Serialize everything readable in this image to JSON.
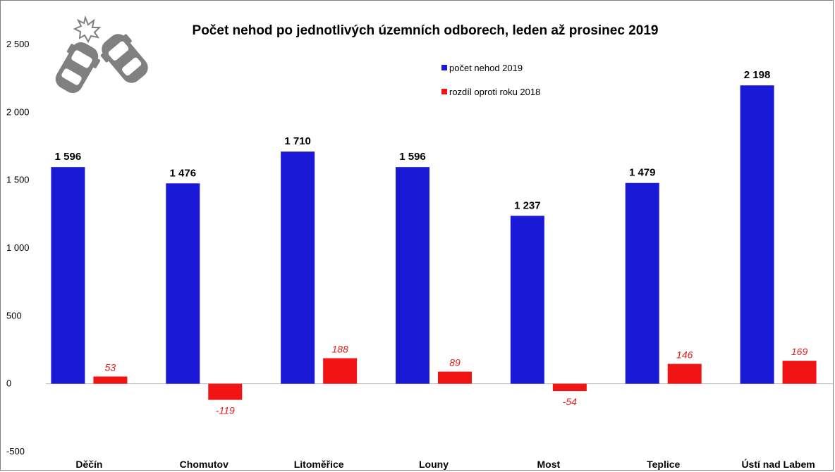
{
  "chart_data": {
    "type": "bar",
    "title": "Počet nehod po jednotlivých územních odborech, leden až prosinec 2019",
    "categories": [
      "Děčín",
      "Chomutov",
      "Litoměřice",
      "Louny",
      "Most",
      "Teplice",
      "Ústí nad Labem"
    ],
    "series": [
      {
        "name": "počet nehod 2019",
        "color": "#1a1ad6",
        "values": [
          1596,
          1476,
          1710,
          1596,
          1237,
          1479,
          2198
        ],
        "labels": [
          "1 596",
          "1 476",
          "1 710",
          "1 596",
          "1 237",
          "1 479",
          "2 198"
        ]
      },
      {
        "name": "rozdíl oproti roku 2018",
        "color": "#f01414",
        "values": [
          53,
          -119,
          188,
          89,
          -54,
          146,
          169
        ],
        "labels": [
          "53",
          "-119",
          "188",
          "89",
          "-54",
          "146",
          "169"
        ]
      }
    ],
    "y_ticks": [
      2500,
      2000,
      1500,
      1000,
      500,
      0,
      -500
    ],
    "y_tick_labels": [
      "2 500",
      "2 000",
      "1 500",
      "1 000",
      "500",
      "0",
      "-500"
    ],
    "ylim": [
      -500,
      2500
    ],
    "grid": false,
    "legend_position": "top-center",
    "xlabel": "",
    "ylabel": ""
  },
  "icon": "car-crash-icon",
  "colors": {
    "icon": "#808080",
    "axis": "#bfbfbf"
  }
}
